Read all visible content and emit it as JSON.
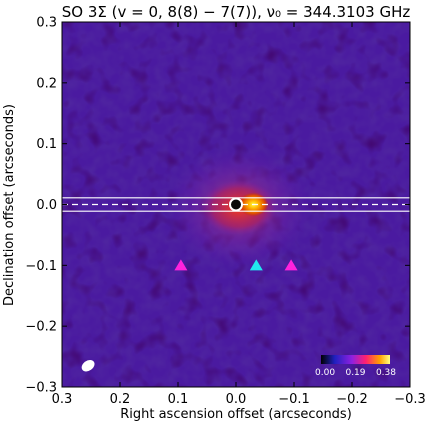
{
  "chart_data": {
    "type": "heatmap",
    "title": "SO 3Σ (v = 0,  8(8) − 7(7)), ν₀ = 344.3103 GHz",
    "xlabel": "Right ascension offset (arcseconds)",
    "ylabel": "Declination offset (arcseconds)",
    "xlim": [
      0.3,
      -0.3
    ],
    "ylim": [
      -0.3,
      0.3
    ],
    "x_ticks": [
      0.3,
      0.2,
      0.1,
      0.0,
      -0.1,
      -0.2,
      -0.3
    ],
    "x_tick_labels": [
      "0.3",
      "0.2",
      "0.1",
      "0.0",
      "−0.1",
      "−0.2",
      "−0.3"
    ],
    "y_ticks": [
      0.3,
      0.2,
      0.1,
      0.0,
      -0.1,
      -0.2,
      -0.3
    ],
    "y_tick_labels": [
      "0.3",
      "0.2",
      "0.1",
      "0.0",
      "−0.1",
      "−0.2",
      "−0.3"
    ],
    "colormap": "gnuplot2",
    "colorbar": {
      "min": 0.0,
      "max": 0.38,
      "tick_values": [
        0.0,
        0.19,
        0.38
      ],
      "tick_labels": [
        "0.00",
        "0.19",
        "0.38"
      ],
      "placement": "inside lower-right"
    },
    "emission_peak": {
      "x": -0.03,
      "y": 0.0,
      "value": 0.38
    },
    "emission_extent": {
      "x_range": [
        0.06,
        -0.07
      ],
      "y_range": [
        -0.05,
        0.04
      ]
    },
    "continuum_marker": {
      "x": 0.0,
      "y": 0.0,
      "shape": "circle",
      "color": "#ffffff"
    },
    "triangle_markers": [
      {
        "x": 0.095,
        "y": -0.1,
        "color": "#ff22dd"
      },
      {
        "x": -0.035,
        "y": -0.1,
        "color": "#22e8ee"
      },
      {
        "x": -0.095,
        "y": -0.1,
        "color": "#ff22dd"
      }
    ],
    "horizontal_lines": [
      {
        "y": 0.0,
        "style": "dashed",
        "color": "#ffffff"
      },
      {
        "y": 0.011,
        "style": "solid",
        "color": "#ffffff"
      },
      {
        "y": -0.011,
        "style": "solid",
        "color": "#ffffff"
      }
    ],
    "beam": {
      "x": 0.255,
      "y": -0.265,
      "color": "#ffffff",
      "shape": "ellipse"
    },
    "background_color": "#4a1aa0",
    "grid": false
  }
}
